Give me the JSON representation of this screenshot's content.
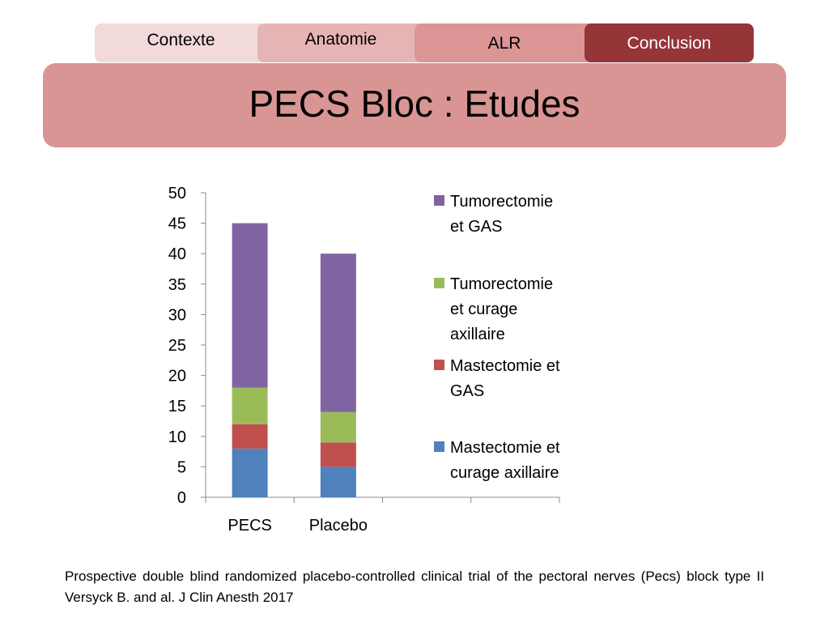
{
  "nav": {
    "tabs": [
      {
        "label": "Contexte",
        "active": false
      },
      {
        "label": "Anatomie",
        "active": false
      },
      {
        "label": "ALR",
        "active": false
      },
      {
        "label": "Conclusion",
        "active": true
      }
    ]
  },
  "slide": {
    "title": "PECS Bloc : Etudes",
    "footnote": "Prospective double blind randomized placebo-controlled clinical trial of the pectoral nerves (Pecs) block type II Versyck  B. and al. J Clin Anesth 2017"
  },
  "colors": {
    "banner": "#d99594",
    "active_tab": "#953538"
  },
  "chart_data": {
    "type": "bar",
    "stacked": true,
    "categories": [
      "PECS",
      "Placebo"
    ],
    "category_slots": 4,
    "y_ticks": [
      "0",
      "5",
      "10",
      "15",
      "20",
      "25",
      "30",
      "35",
      "40",
      "45",
      "50"
    ],
    "ylim": [
      0,
      50
    ],
    "grid": false,
    "legend_position": "right",
    "series": [
      {
        "name": "Mastectomie et curage axillaire",
        "color": "#4f81bd",
        "values": [
          8,
          5
        ],
        "legend_lines": [
          "Mastectomie et",
          "curage axillaire"
        ]
      },
      {
        "name": "Mastectomie et GAS",
        "color": "#c0504d",
        "values": [
          4,
          4
        ],
        "legend_lines": [
          "Mastectomie et",
          "GAS"
        ]
      },
      {
        "name": "Tumorectomie et curage axillaire",
        "color": "#9bbb59",
        "values": [
          6,
          5
        ],
        "legend_lines": [
          "Tumorectomie",
          "et curage",
          "axillaire"
        ]
      },
      {
        "name": "Tumorectomie et GAS",
        "color": "#8064a2",
        "values": [
          27,
          26
        ],
        "legend_lines": [
          "Tumorectomie",
          "et GAS"
        ]
      }
    ]
  }
}
